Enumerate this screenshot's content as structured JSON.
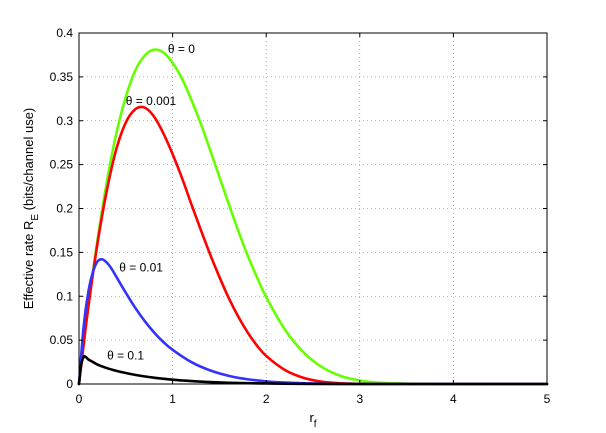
{
  "chart_data": {
    "type": "line",
    "xlabel": "r",
    "xlabel_sub": "f",
    "ylabel": "Effective rate R",
    "ylabel_sub": "E",
    "ylabel_suffix": " (bits/channel use)",
    "xlim": [
      0,
      5
    ],
    "ylim": [
      0,
      0.4
    ],
    "xticks": [
      "0",
      "1",
      "2",
      "3",
      "4",
      "5"
    ],
    "yticks": [
      "0",
      "0.05",
      "0.1",
      "0.15",
      "0.2",
      "0.25",
      "0.3",
      "0.35",
      "0.4"
    ],
    "grid": true,
    "series": [
      {
        "name": "θ = 0",
        "color": "#66ff00",
        "x": [
          0,
          0.05,
          0.1,
          0.2,
          0.3,
          0.4,
          0.5,
          0.6,
          0.7,
          0.8,
          0.9,
          1.0,
          1.1,
          1.2,
          1.3,
          1.4,
          1.5,
          1.6,
          1.7,
          1.8,
          1.9,
          2.0,
          2.2,
          2.4,
          2.6,
          2.8,
          3.0,
          3.2,
          3.5,
          4.0,
          4.5,
          5.0
        ],
        "y": [
          0,
          0.046,
          0.089,
          0.166,
          0.232,
          0.286,
          0.327,
          0.357,
          0.374,
          0.381,
          0.378,
          0.366,
          0.348,
          0.324,
          0.297,
          0.267,
          0.236,
          0.205,
          0.175,
          0.147,
          0.122,
          0.099,
          0.062,
          0.036,
          0.019,
          0.009,
          0.004,
          0.0015,
          0.0004,
          0,
          0,
          0
        ]
      },
      {
        "name": "θ = 0.001",
        "color": "#ff0000",
        "x": [
          0,
          0.05,
          0.1,
          0.2,
          0.3,
          0.4,
          0.5,
          0.6,
          0.7,
          0.8,
          0.9,
          1.0,
          1.1,
          1.2,
          1.3,
          1.4,
          1.5,
          1.6,
          1.7,
          1.8,
          1.9,
          2.0,
          2.2,
          2.4,
          2.6,
          2.8,
          3.0,
          3.2,
          3.5,
          4.0,
          4.5,
          5.0
        ],
        "y": [
          0,
          0.045,
          0.088,
          0.162,
          0.222,
          0.268,
          0.298,
          0.313,
          0.315,
          0.305,
          0.286,
          0.262,
          0.235,
          0.205,
          0.176,
          0.148,
          0.122,
          0.098,
          0.077,
          0.059,
          0.044,
          0.032,
          0.016,
          0.007,
          0.0025,
          0.0008,
          0.0002,
          0,
          0,
          0,
          0,
          0
        ]
      },
      {
        "name": "θ = 0.01",
        "color": "#3333ff",
        "x": [
          0,
          0.05,
          0.1,
          0.15,
          0.2,
          0.25,
          0.3,
          0.35,
          0.4,
          0.5,
          0.6,
          0.7,
          0.8,
          0.9,
          1.0,
          1.2,
          1.4,
          1.6,
          1.8,
          2.0,
          2.2,
          2.4,
          2.6,
          2.8,
          3.0,
          3.5,
          4.0,
          4.5,
          5.0
        ],
        "y": [
          0,
          0.066,
          0.105,
          0.128,
          0.14,
          0.142,
          0.138,
          0.131,
          0.122,
          0.104,
          0.087,
          0.072,
          0.059,
          0.048,
          0.039,
          0.025,
          0.0155,
          0.0093,
          0.0054,
          0.003,
          0.0016,
          0.0008,
          0.0004,
          0.0001,
          0,
          0,
          0,
          0,
          0
        ]
      },
      {
        "name": "θ = 0.1",
        "color": "#000000",
        "x": [
          0,
          0.02,
          0.05,
          0.08,
          0.1,
          0.15,
          0.2,
          0.3,
          0.4,
          0.5,
          0.6,
          0.8,
          1.0,
          1.2,
          1.4,
          1.6,
          1.8,
          2.0,
          2.2,
          2.5,
          3.0,
          4.0,
          5.0
        ],
        "y": [
          0,
          0.02,
          0.031,
          0.03,
          0.028,
          0.025,
          0.022,
          0.018,
          0.015,
          0.0125,
          0.0104,
          0.0072,
          0.0049,
          0.0033,
          0.0022,
          0.0014,
          0.0009,
          0.0006,
          0.0003,
          0.0001,
          0,
          0,
          0
        ]
      }
    ],
    "annotations": [
      {
        "text": "θ = 0",
        "x": 0.95,
        "y": 0.377
      },
      {
        "text": "θ = 0.001",
        "x": 0.5,
        "y": 0.318
      },
      {
        "text": "θ = 0.01",
        "x": 0.43,
        "y": 0.128
      },
      {
        "text": "θ = 0.1",
        "x": 0.3,
        "y": 0.028
      }
    ]
  }
}
